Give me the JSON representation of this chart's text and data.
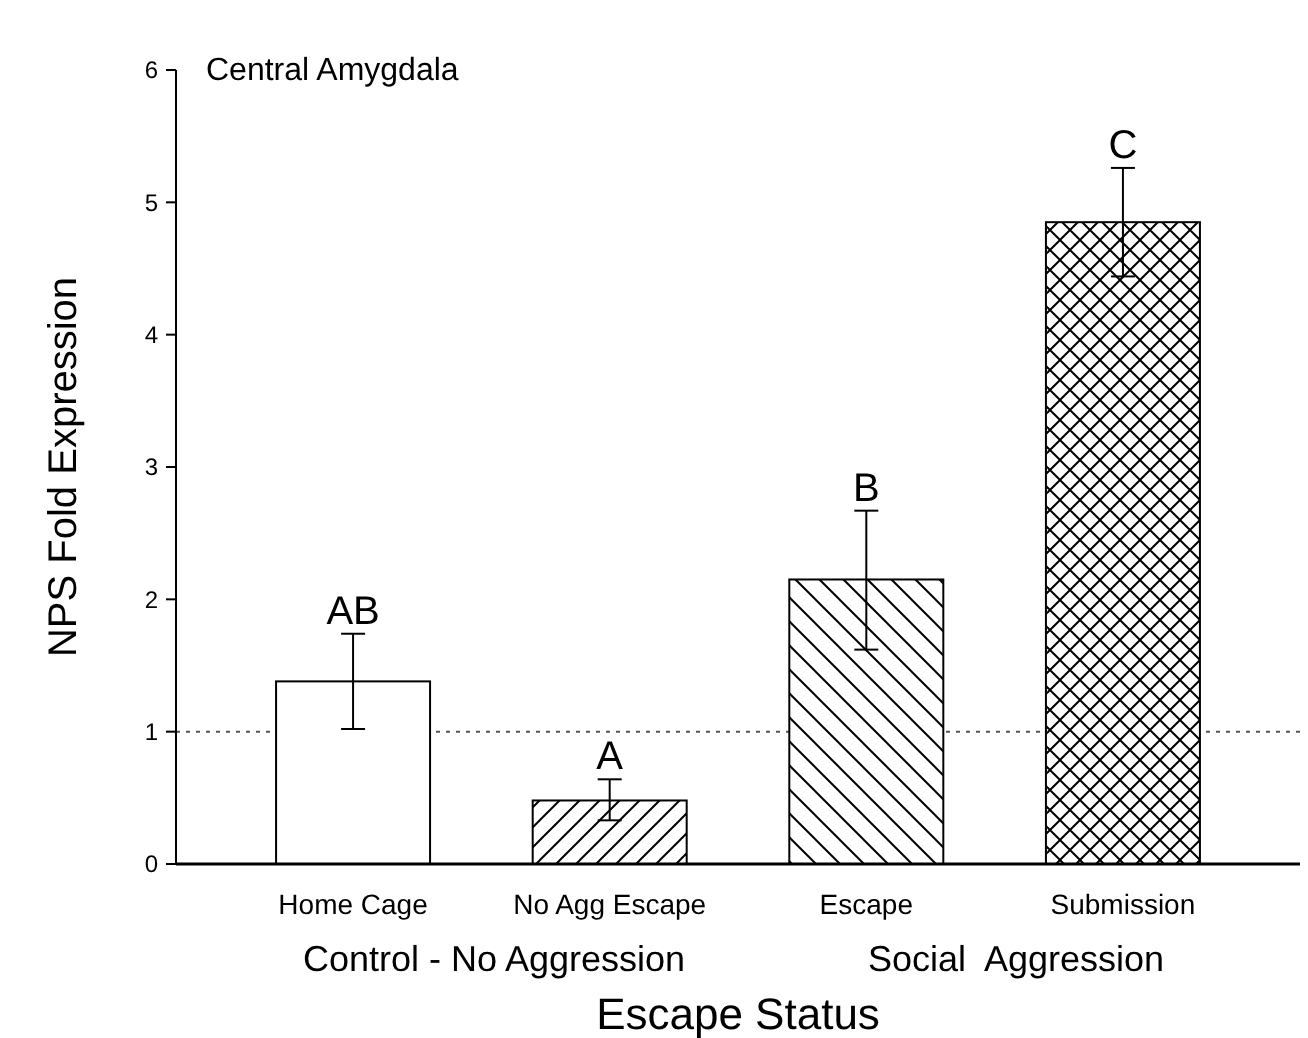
{
  "chart_data": {
    "type": "bar",
    "title": "Central Amygdala",
    "xlabel": "Escape Status",
    "ylabel": "NPS Fold Expression",
    "categories": [
      "Home Cage",
      "No Agg Escape",
      "Escape",
      "Submission"
    ],
    "values": [
      1.38,
      0.48,
      2.15,
      4.85
    ],
    "errors": [
      [
        1.02,
        1.74
      ],
      [
        0.33,
        0.64
      ],
      [
        1.62,
        2.67
      ],
      [
        4.44,
        5.26
      ]
    ],
    "colors": [
      "#ffffff",
      "#ffffff",
      "#ffffff",
      "#ffffff"
    ],
    "ylim": [
      0,
      6
    ],
    "yticks": [
      0,
      1,
      2,
      3,
      4,
      5,
      6
    ],
    "grid": false,
    "ref_lines": [
      {
        "axis": "y",
        "value": 1,
        "line_style": "dotted",
        "color": "#555555"
      }
    ],
    "annotations": [
      {
        "text": "AB",
        "x": "Home Cage",
        "y": 1.74
      },
      {
        "text": "A",
        "x": "No Agg Escape",
        "y": 0.64
      },
      {
        "text": "B",
        "x": "Escape",
        "y": 2.67
      },
      {
        "text": "C",
        "x": "Submission",
        "y": 5.26
      },
      "Control - No Aggression",
      "Social  Aggression"
    ]
  }
}
